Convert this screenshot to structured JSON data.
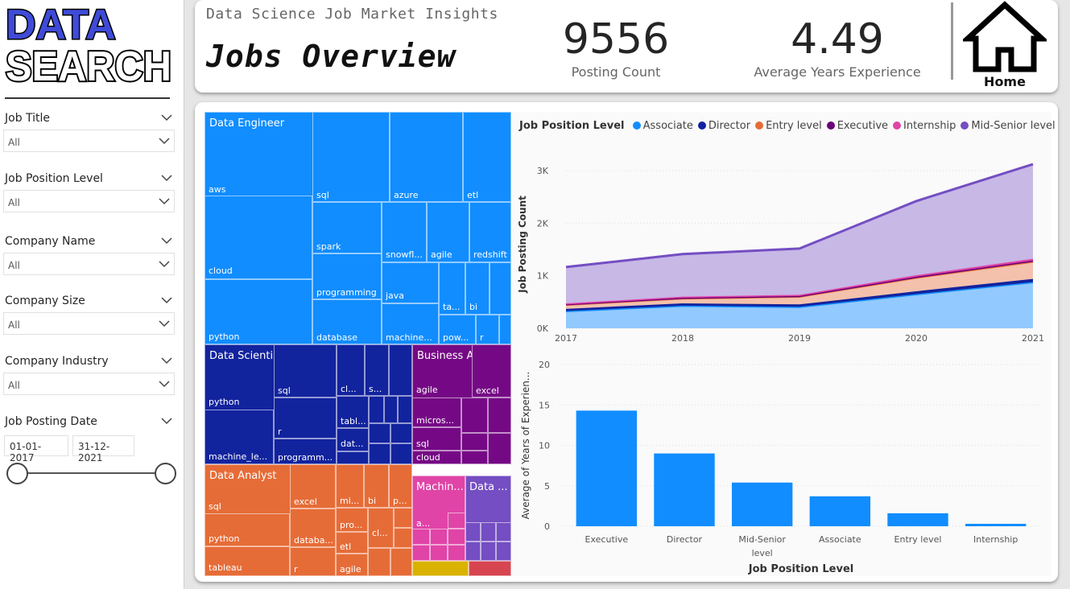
{
  "logo": {
    "line1": "DATA",
    "line2": "SEARCH"
  },
  "filters": [
    {
      "label": "Job Title",
      "value": "All"
    },
    {
      "label": "Job Position Level",
      "value": "All"
    },
    {
      "label": "Company Name",
      "value": "All"
    },
    {
      "label": "Company Size",
      "value": "All"
    },
    {
      "label": "Company Industry",
      "value": "All"
    }
  ],
  "date_filter": {
    "label": "Job Posting Date",
    "start": "01-01-2017",
    "end": "31-12-2021"
  },
  "header": {
    "subtitle": "Data Science Job Market Insights",
    "title": "Jobs Overview",
    "kpis": [
      {
        "value": "9556",
        "label": "Posting Count"
      },
      {
        "value": "4.49",
        "label": "Average Years Experience"
      }
    ],
    "home_label": "Home"
  },
  "treemap": {
    "groups": [
      {
        "name": "Data Engineer",
        "color": "#118dff",
        "items": [
          "aws",
          "cloud",
          "python",
          "sql",
          "azure",
          "etl",
          "spark",
          "programming",
          "database",
          "snowfl...",
          "agile",
          "redshift",
          "java",
          "machine...",
          "ta...",
          "bi",
          "pow...",
          "r"
        ]
      },
      {
        "name": "Data Scientist",
        "color": "#12239e",
        "items": [
          "python",
          "machine_le...",
          "sql",
          "r",
          "programm...",
          "cl...",
          "s...",
          "tabl...",
          "dat..."
        ]
      },
      {
        "name": "Business Analyst",
        "color": "#750985",
        "items": [
          "agile",
          "excel",
          "micros...",
          "sql",
          "cloud"
        ]
      },
      {
        "name": "Data Analyst",
        "color": "#e66c37",
        "items": [
          "sql",
          "python",
          "tableau",
          "excel",
          "databa...",
          "r",
          "mi...",
          "bi",
          "p...",
          "pro...",
          "cl...",
          "etl",
          "agile"
        ]
      },
      {
        "name": "Machin...",
        "color": "#e044a7",
        "items": [
          "a..."
        ]
      },
      {
        "name": "Data ...",
        "color": "#744ec2",
        "items": []
      }
    ]
  },
  "area_chart": {
    "legend_title": "Job Position Level",
    "ylabel": "Job Posting Count"
  },
  "bar_chart": {
    "ylabel": "Average of Years of Experien...",
    "xlabel": "Job Position Level"
  },
  "chart_data": [
    {
      "type": "area",
      "title": "",
      "xlabel": "",
      "ylabel": "Job Posting Count",
      "x": [
        "2017",
        "2018",
        "2019",
        "2020",
        "2021"
      ],
      "y_ticks": [
        "0K",
        "1K",
        "2K",
        "3K"
      ],
      "ylim": [
        0,
        3200
      ],
      "stacked": true,
      "legend_position": "top-left",
      "series": [
        {
          "name": "Associate",
          "color": "#118dff",
          "values": [
            330,
            430,
            410,
            650,
            880
          ]
        },
        {
          "name": "Director",
          "color": "#12239e",
          "values": [
            40,
            45,
            45,
            55,
            60
          ]
        },
        {
          "name": "Entry level",
          "color": "#e66c37",
          "values": [
            80,
            95,
            150,
            260,
            330
          ]
        },
        {
          "name": "Executive",
          "color": "#6b007b",
          "values": [
            10,
            12,
            12,
            15,
            18
          ]
        },
        {
          "name": "Internship",
          "color": "#e044a7",
          "values": [
            15,
            20,
            20,
            30,
            35
          ]
        },
        {
          "name": "Mid-Senior level",
          "color": "#744ec2",
          "values": [
            690,
            810,
            880,
            1410,
            1800
          ]
        }
      ]
    },
    {
      "type": "bar",
      "title": "",
      "xlabel": "Job Position Level",
      "ylabel": "Average of Years of Experien...",
      "categories": [
        "Executive",
        "Director",
        "Mid-Senior level",
        "Associate",
        "Entry level",
        "Internship"
      ],
      "values": [
        14.3,
        9.0,
        5.4,
        3.7,
        1.6,
        0.3
      ],
      "y_ticks": [
        "0",
        "5",
        "10",
        "15",
        "20"
      ],
      "ylim": [
        0,
        20
      ],
      "color": "#118dff"
    }
  ]
}
